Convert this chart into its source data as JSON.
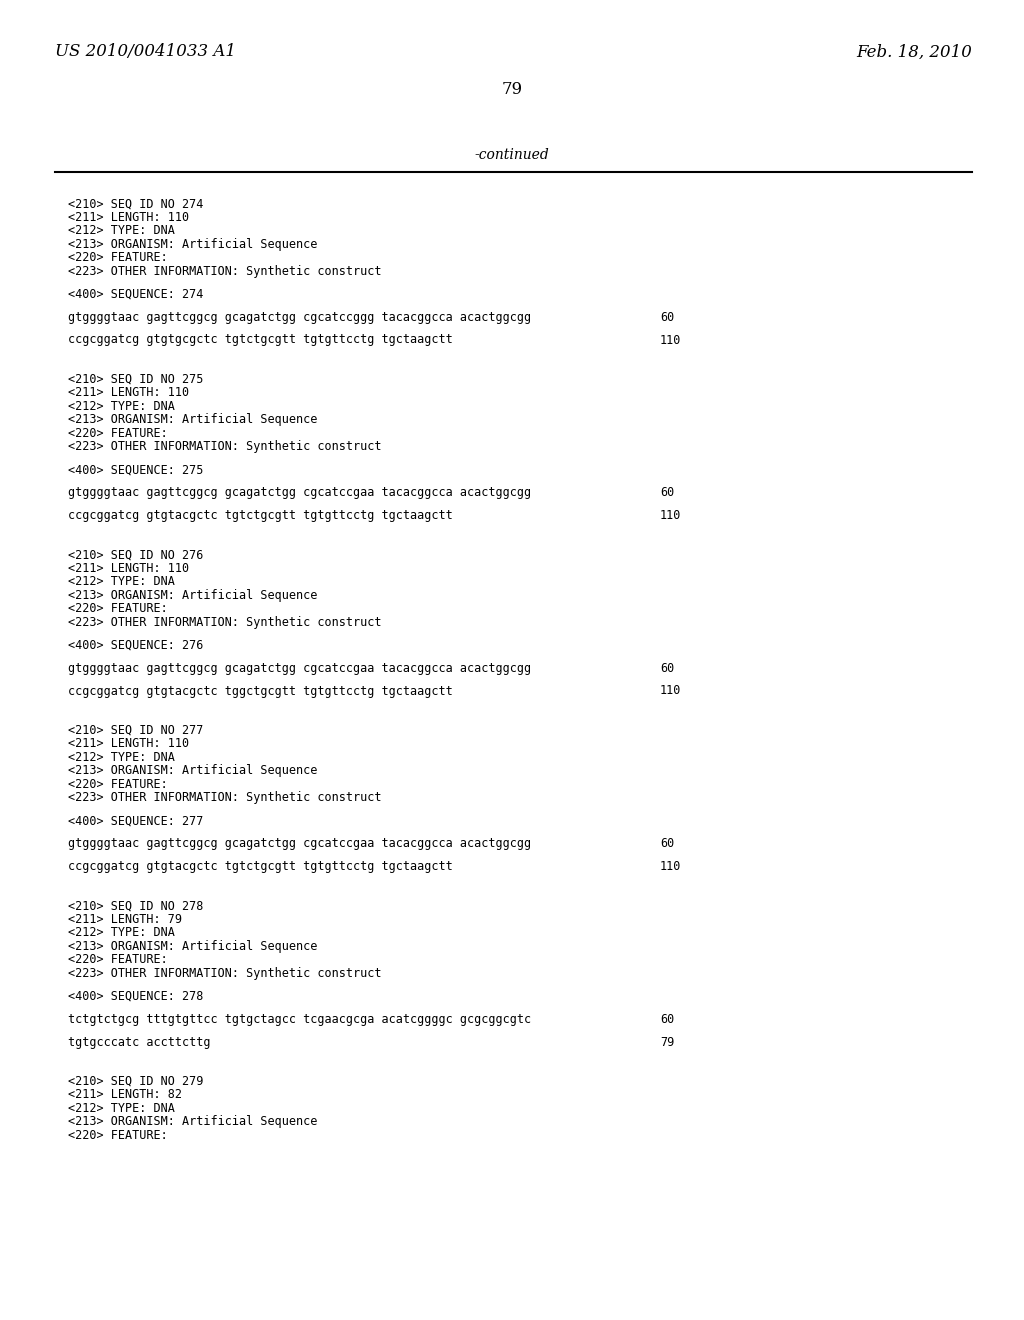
{
  "background_color": "#ffffff",
  "text_color": "#000000",
  "page_header_left": "US 2010/0041033 A1",
  "page_header_right": "Feb. 18, 2010",
  "page_number": "79",
  "continued_label": "-continued",
  "blocks": [
    {
      "meta": [
        "<210> SEQ ID NO 274",
        "<211> LENGTH: 110",
        "<212> TYPE: DNA",
        "<213> ORGANISM: Artificial Sequence",
        "<220> FEATURE:",
        "<223> OTHER INFORMATION: Synthetic construct"
      ],
      "sequence_label": "<400> SEQUENCE: 274",
      "seq_lines": [
        [
          "gtggggtaac gagttcggcg gcagatctgg cgcatccggg tacacggcca acactggcgg",
          "60"
        ],
        [
          "ccgcggatcg gtgtgcgctc tgtctgcgtt tgtgttcctg tgctaagctt",
          "110"
        ]
      ]
    },
    {
      "meta": [
        "<210> SEQ ID NO 275",
        "<211> LENGTH: 110",
        "<212> TYPE: DNA",
        "<213> ORGANISM: Artificial Sequence",
        "<220> FEATURE:",
        "<223> OTHER INFORMATION: Synthetic construct"
      ],
      "sequence_label": "<400> SEQUENCE: 275",
      "seq_lines": [
        [
          "gtggggtaac gagttcggcg gcagatctgg cgcatccgaa tacacggcca acactggcgg",
          "60"
        ],
        [
          "ccgcggatcg gtgtacgctc tgtctgcgtt tgtgttcctg tgctaagctt",
          "110"
        ]
      ]
    },
    {
      "meta": [
        "<210> SEQ ID NO 276",
        "<211> LENGTH: 110",
        "<212> TYPE: DNA",
        "<213> ORGANISM: Artificial Sequence",
        "<220> FEATURE:",
        "<223> OTHER INFORMATION: Synthetic construct"
      ],
      "sequence_label": "<400> SEQUENCE: 276",
      "seq_lines": [
        [
          "gtggggtaac gagttcggcg gcagatctgg cgcatccgaa tacacggcca acactggcgg",
          "60"
        ],
        [
          "ccgcggatcg gtgtacgctc tggctgcgtt tgtgttcctg tgctaagctt",
          "110"
        ]
      ]
    },
    {
      "meta": [
        "<210> SEQ ID NO 277",
        "<211> LENGTH: 110",
        "<212> TYPE: DNA",
        "<213> ORGANISM: Artificial Sequence",
        "<220> FEATURE:",
        "<223> OTHER INFORMATION: Synthetic construct"
      ],
      "sequence_label": "<400> SEQUENCE: 277",
      "seq_lines": [
        [
          "gtggggtaac gagttcggcg gcagatctgg cgcatccgaa tacacggcca acactggcgg",
          "60"
        ],
        [
          "ccgcggatcg gtgtacgctc tgtctgcgtt tgtgttcctg tgctaagctt",
          "110"
        ]
      ]
    },
    {
      "meta": [
        "<210> SEQ ID NO 278",
        "<211> LENGTH: 79",
        "<212> TYPE: DNA",
        "<213> ORGANISM: Artificial Sequence",
        "<220> FEATURE:",
        "<223> OTHER INFORMATION: Synthetic construct"
      ],
      "sequence_label": "<400> SEQUENCE: 278",
      "seq_lines": [
        [
          "tctgtctgcg tttgtgttcc tgtgctagcc tcgaacgcga acatcggggc gcgcggcgtc",
          "60"
        ],
        [
          "tgtgcccatc accttcttg",
          "79"
        ]
      ]
    },
    {
      "meta": [
        "<210> SEQ ID NO 279",
        "<211> LENGTH: 82",
        "<212> TYPE: DNA",
        "<213> ORGANISM: Artificial Sequence",
        "<220> FEATURE:"
      ],
      "sequence_label": null,
      "seq_lines": []
    }
  ]
}
